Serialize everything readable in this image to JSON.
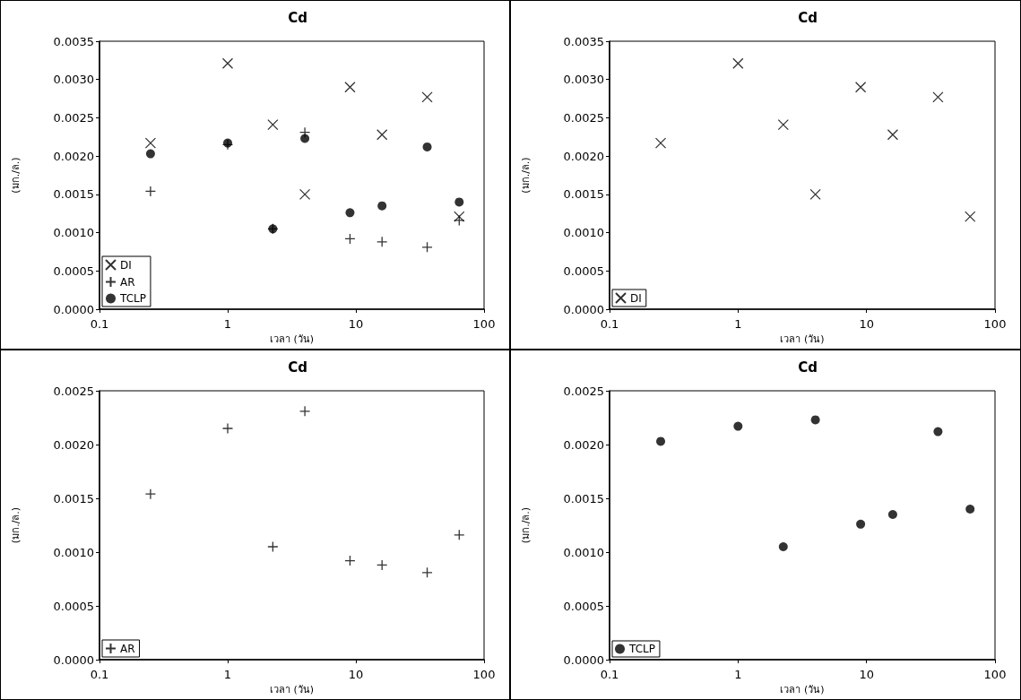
{
  "chart_data": [
    {
      "type": "scatter",
      "title": "Cd",
      "xlabel": "เวลา (วัน)",
      "ylabel": "(มก./ล.)",
      "log": "x",
      "grid": false,
      "legend": "bottom left",
      "x": [
        0.25,
        1,
        2.25,
        4,
        9,
        16,
        36,
        64
      ],
      "xlim": [
        0.1,
        100
      ],
      "xticks": [
        0.1,
        1,
        10,
        100
      ],
      "ylim": [
        0,
        0.0035
      ],
      "yticks": [
        {
          "value": 0,
          "label": "0.0000"
        },
        0.0005,
        {
          "value": 0.001,
          "label": "0.0010"
        },
        0.0015,
        {
          "value": 0.002,
          "label": "0.0020"
        },
        0.0025,
        {
          "value": 0.003,
          "label": "0.0030"
        },
        0.0035
      ],
      "series": [
        {
          "name": "DI",
          "color": "#000000",
          "marker": "cross",
          "values": [
            0.00217,
            0.00321,
            0.00241,
            0.0015,
            0.0029,
            0.00228,
            0.00277,
            0.00121
          ]
        },
        {
          "name": "AR",
          "color": "#000000",
          "marker": "plus",
          "values": [
            0.00154,
            0.00215,
            0.00105,
            0.00231,
            0.00092,
            0.00088,
            0.00081,
            0.00116
          ]
        },
        {
          "name": "TCLP",
          "color": "#000000",
          "marker": "circle",
          "values": [
            0.00203,
            0.00217,
            0.00105,
            0.00223,
            0.00126,
            0.00135,
            0.00212,
            0.0014
          ]
        }
      ]
    },
    {
      "type": "scatter",
      "title": "Cd",
      "xlabel": "เวลา (วัน)",
      "ylabel": "(มก./ล.)",
      "log": "x",
      "grid": false,
      "legend": "bottom left",
      "x": [
        0.25,
        1,
        2.25,
        4,
        9,
        16,
        36,
        64
      ],
      "xlim": [
        0.1,
        100
      ],
      "xticks": [
        0.1,
        1,
        10,
        100
      ],
      "ylim": [
        0,
        0.0035
      ],
      "yticks": [
        {
          "value": 0,
          "label": "0.0000"
        },
        0.0005,
        {
          "value": 0.001,
          "label": "0.0010"
        },
        0.0015,
        {
          "value": 0.002,
          "label": "0.0020"
        },
        0.0025,
        {
          "value": 0.003,
          "label": "0.0030"
        },
        0.0035
      ],
      "series": [
        {
          "name": "DI",
          "color": "#000000",
          "marker": "cross",
          "values": [
            0.00217,
            0.00321,
            0.00241,
            0.0015,
            0.0029,
            0.00228,
            0.00277,
            0.00121
          ]
        }
      ]
    },
    {
      "type": "scatter",
      "title": "Cd",
      "xlabel": "เวลา (วัน)",
      "ylabel": "(มก./ล.)",
      "log": "x",
      "grid": false,
      "legend": "bottom left",
      "x": [
        0.25,
        1,
        2.25,
        4,
        9,
        16,
        36,
        64
      ],
      "xlim": [
        0.1,
        100
      ],
      "xticks": [
        0.1,
        1,
        10,
        100
      ],
      "ylim": [
        0,
        0.0025
      ],
      "yticks": [
        {
          "value": 0,
          "label": "0.0000"
        },
        0.0005,
        {
          "value": 0.001,
          "label": "0.0010"
        },
        0.0015,
        {
          "value": 0.002,
          "label": "0.0020"
        },
        0.0025
      ],
      "series": [
        {
          "name": "AR",
          "color": "#000000",
          "marker": "plus",
          "values": [
            0.00154,
            0.00215,
            0.00105,
            0.00231,
            0.00092,
            0.00088,
            0.00081,
            0.00116
          ]
        }
      ]
    },
    {
      "type": "scatter",
      "title": "Cd",
      "xlabel": "เวลา (วัน)",
      "ylabel": "(มก./ล.)",
      "log": "x",
      "grid": false,
      "legend": "bottom left",
      "x": [
        0.25,
        1,
        2.25,
        4,
        9,
        16,
        36,
        64
      ],
      "xlim": [
        0.1,
        100
      ],
      "xticks": [
        0.1,
        1,
        10,
        100
      ],
      "ylim": [
        0,
        0.0025
      ],
      "yticks": [
        {
          "value": 0,
          "label": "0.0000"
        },
        0.0005,
        {
          "value": 0.001,
          "label": "0.0010"
        },
        0.0015,
        {
          "value": 0.002,
          "label": "0.0020"
        },
        0.0025
      ],
      "series": [
        {
          "name": "TCLP",
          "color": "#000000",
          "marker": "circle",
          "values": [
            0.00203,
            0.00217,
            0.00105,
            0.00223,
            0.00126,
            0.00135,
            0.00212,
            0.0014
          ]
        }
      ]
    }
  ]
}
